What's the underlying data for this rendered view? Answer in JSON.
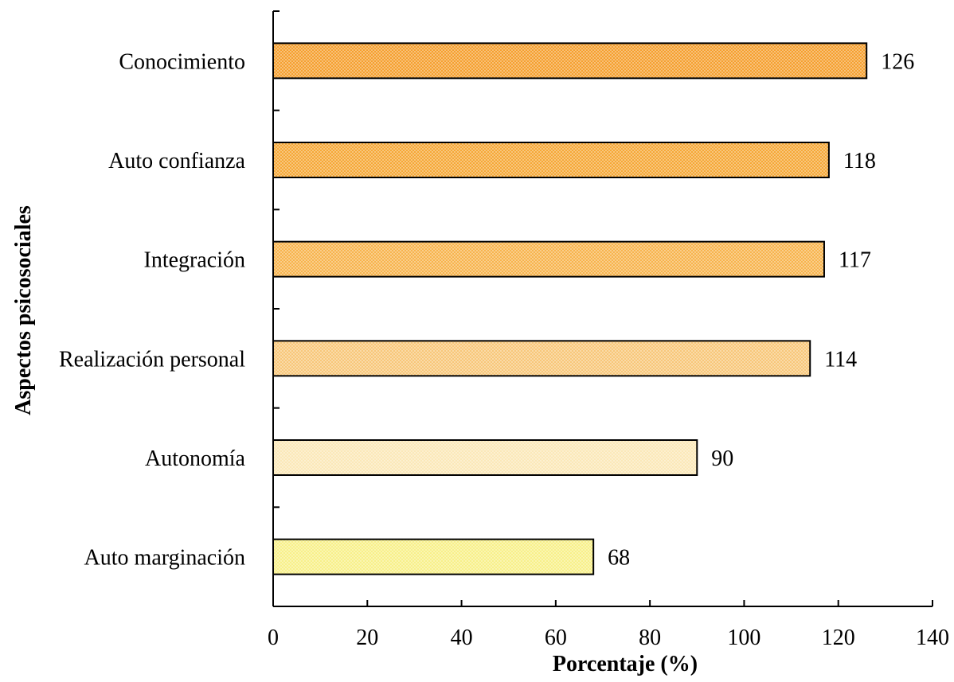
{
  "chart_data": {
    "type": "bar",
    "orientation": "horizontal",
    "categories": [
      "Conocimiento",
      "Auto confianza",
      "Integración",
      "Realización personal",
      "Autonomía",
      "Auto marginación"
    ],
    "values": [
      126,
      118,
      117,
      114,
      90,
      68
    ],
    "data_labels": [
      "126",
      "118",
      "117",
      "114",
      "90",
      "68"
    ],
    "xlabel": "Porcentaje (%)",
    "ylabel": "Aspectos psicosociales",
    "xlim": [
      0,
      140
    ],
    "xticks": [
      "0",
      "20",
      "40",
      "60",
      "80",
      "100",
      "120",
      "140"
    ],
    "grid": false,
    "legend": "none",
    "bar_colors": [
      "#f5a030",
      "#f5a838",
      "#f7b44e",
      "#f8c77a",
      "#fbe8b8",
      "#f8f08a"
    ],
    "pattern_dot_color": "#ffffff"
  }
}
